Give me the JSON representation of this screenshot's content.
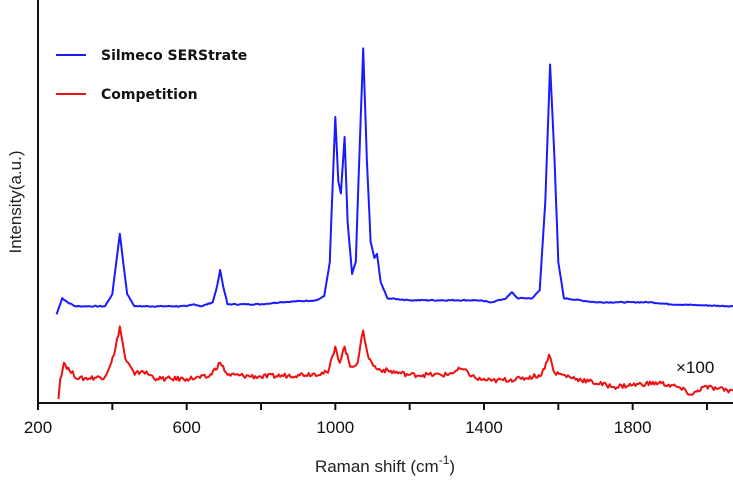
{
  "chart_data": {
    "type": "line",
    "title": "",
    "xlabel": "Raman shift (cm",
    "xlabel_sup": "-1",
    "xlabel_end": ")",
    "ylabel": "Intensity(a.u.)",
    "xlim": [
      200,
      2070
    ],
    "ylim": [
      0,
      100
    ],
    "xticks": [
      200,
      600,
      1000,
      1400,
      1800
    ],
    "minor_xticks": [
      400,
      800,
      1200,
      1600,
      2000
    ],
    "grid": false,
    "legend_position": "top-left",
    "annotation": "×100",
    "series": [
      {
        "name": "Silmeco SERStrate",
        "color": "#1a1aff",
        "points": [
          [
            250,
            22
          ],
          [
            265,
            26
          ],
          [
            280,
            25
          ],
          [
            300,
            24
          ],
          [
            380,
            24
          ],
          [
            400,
            27
          ],
          [
            412,
            36
          ],
          [
            420,
            42
          ],
          [
            428,
            36
          ],
          [
            440,
            27
          ],
          [
            460,
            24
          ],
          [
            600,
            24
          ],
          [
            620,
            24.5
          ],
          [
            640,
            24
          ],
          [
            670,
            25
          ],
          [
            682,
            29
          ],
          [
            690,
            33
          ],
          [
            698,
            29
          ],
          [
            710,
            24.5
          ],
          [
            800,
            24.5
          ],
          [
            850,
            25
          ],
          [
            950,
            25.5
          ],
          [
            970,
            26.5
          ],
          [
            985,
            35
          ],
          [
            1000,
            71
          ],
          [
            1008,
            55
          ],
          [
            1015,
            52
          ],
          [
            1025,
            66
          ],
          [
            1033,
            45
          ],
          [
            1045,
            32
          ],
          [
            1055,
            35
          ],
          [
            1065,
            62
          ],
          [
            1075,
            88
          ],
          [
            1085,
            60
          ],
          [
            1095,
            40
          ],
          [
            1105,
            36
          ],
          [
            1112,
            37
          ],
          [
            1122,
            30
          ],
          [
            1140,
            26
          ],
          [
            1200,
            25.5
          ],
          [
            1380,
            25.5
          ],
          [
            1420,
            25
          ],
          [
            1460,
            26
          ],
          [
            1475,
            27.5
          ],
          [
            1490,
            26
          ],
          [
            1530,
            26
          ],
          [
            1550,
            28
          ],
          [
            1565,
            50
          ],
          [
            1578,
            84
          ],
          [
            1590,
            60
          ],
          [
            1600,
            35
          ],
          [
            1615,
            26
          ],
          [
            1700,
            25
          ],
          [
            1760,
            25
          ],
          [
            1850,
            25
          ],
          [
            1900,
            24.5
          ],
          [
            2070,
            24
          ]
        ]
      },
      {
        "name": "Competition",
        "color": "#ee1111",
        "points": [
          [
            255,
            1
          ],
          [
            260,
            6
          ],
          [
            270,
            10
          ],
          [
            285,
            8
          ],
          [
            310,
            6
          ],
          [
            380,
            6.5
          ],
          [
            405,
            12
          ],
          [
            420,
            19
          ],
          [
            435,
            11
          ],
          [
            460,
            7
          ],
          [
            480,
            8
          ],
          [
            520,
            6
          ],
          [
            600,
            6
          ],
          [
            660,
            6.5
          ],
          [
            690,
            10
          ],
          [
            710,
            7
          ],
          [
            800,
            6.5
          ],
          [
            900,
            7
          ],
          [
            980,
            7.5
          ],
          [
            1000,
            14
          ],
          [
            1012,
            10
          ],
          [
            1025,
            14
          ],
          [
            1040,
            9
          ],
          [
            1060,
            10
          ],
          [
            1075,
            18
          ],
          [
            1090,
            11
          ],
          [
            1110,
            8.5
          ],
          [
            1200,
            7
          ],
          [
            1300,
            7
          ],
          [
            1340,
            8.5
          ],
          [
            1380,
            6
          ],
          [
            1420,
            5.5
          ],
          [
            1500,
            6
          ],
          [
            1555,
            7
          ],
          [
            1575,
            12
          ],
          [
            1590,
            7.5
          ],
          [
            1650,
            6
          ],
          [
            1750,
            4
          ],
          [
            1800,
            4.5
          ],
          [
            1870,
            5
          ],
          [
            1920,
            4
          ],
          [
            1960,
            2
          ],
          [
            1990,
            4
          ],
          [
            2030,
            3.5
          ],
          [
            2070,
            3
          ]
        ]
      }
    ]
  }
}
